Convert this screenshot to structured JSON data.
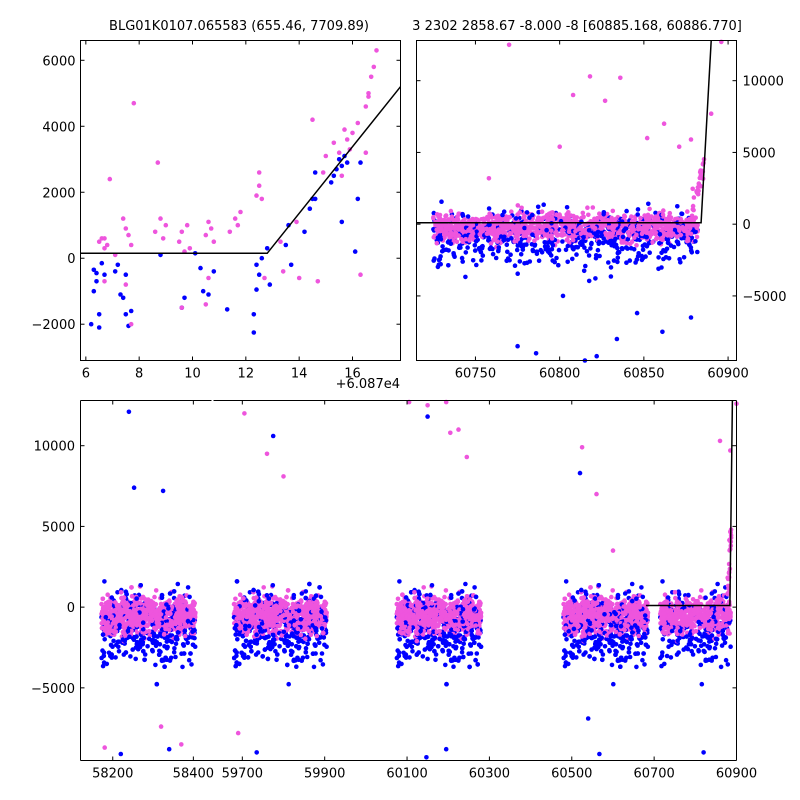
{
  "colors": {
    "blue": "#0000ff",
    "pink": "#ee55dd",
    "model": "#000000"
  },
  "chart_data": [
    {
      "id": "zoom",
      "type": "scatter",
      "title": "BLG01K0107.065583 (655.46, 7709.89)",
      "xlim": [
        5.8,
        17.8
      ],
      "ylim": [
        -3100,
        6600
      ],
      "xticks": [
        6,
        8,
        10,
        12,
        14,
        16
      ],
      "yticks": [
        -2000,
        0,
        2000,
        4000,
        6000
      ],
      "offset_label": "+6.087e4",
      "model": [
        [
          5.8,
          150
        ],
        [
          12.8,
          150
        ],
        [
          17.8,
          5200
        ]
      ],
      "series": [
        {
          "color": "blue",
          "points": [
            [
              6.3,
              -350
            ],
            [
              6.4,
              -450
            ],
            [
              6.4,
              -700
            ],
            [
              6.3,
              -1000
            ],
            [
              6.2,
              -2000
            ],
            [
              6.5,
              -1700
            ],
            [
              6.5,
              -2100
            ],
            [
              6.6,
              -150
            ],
            [
              6.7,
              -500
            ],
            [
              7.1,
              -400
            ],
            [
              7.2,
              -200
            ],
            [
              7.3,
              -1100
            ],
            [
              7.4,
              -1200
            ],
            [
              7.5,
              -500
            ],
            [
              7.5,
              -1700
            ],
            [
              7.6,
              -2050
            ],
            [
              7.7,
              -1600
            ],
            [
              8.8,
              100
            ],
            [
              9.6,
              -1500
            ],
            [
              9.7,
              -1200
            ],
            [
              10.1,
              150
            ],
            [
              10.3,
              -300
            ],
            [
              10.4,
              -1000
            ],
            [
              10.6,
              -1100
            ],
            [
              10.8,
              -400
            ],
            [
              11.3,
              -1550
            ],
            [
              12.3,
              -1700
            ],
            [
              12.3,
              -2250
            ],
            [
              12.4,
              -950
            ],
            [
              12.4,
              -200
            ],
            [
              12.5,
              -500
            ],
            [
              12.6,
              0
            ],
            [
              12.8,
              300
            ],
            [
              12.9,
              -800
            ],
            [
              13.5,
              400
            ],
            [
              13.6,
              1000
            ],
            [
              13.7,
              -200
            ],
            [
              14.2,
              800
            ],
            [
              14.4,
              1500
            ],
            [
              14.5,
              1800
            ],
            [
              14.6,
              2600
            ],
            [
              14.6,
              1800
            ],
            [
              15.2,
              2300
            ],
            [
              15.3,
              2500
            ],
            [
              15.4,
              2700
            ],
            [
              15.5,
              3000
            ],
            [
              15.6,
              2800
            ],
            [
              15.6,
              1100
            ],
            [
              15.7,
              3100
            ],
            [
              15.8,
              2900
            ],
            [
              16.1,
              200
            ],
            [
              16.2,
              1800
            ],
            [
              16.3,
              2900
            ]
          ]
        },
        {
          "color": "pink",
          "points": [
            [
              6.5,
              500
            ],
            [
              6.6,
              600
            ],
            [
              6.7,
              300
            ],
            [
              6.8,
              400
            ],
            [
              6.7,
              600
            ],
            [
              6.9,
              2400
            ],
            [
              6.7,
              -700
            ],
            [
              7.1,
              100
            ],
            [
              7.4,
              1200
            ],
            [
              7.5,
              900
            ],
            [
              7.6,
              700
            ],
            [
              7.7,
              400
            ],
            [
              7.8,
              4700
            ],
            [
              7.7,
              -2000
            ],
            [
              7.5,
              -800
            ],
            [
              8.6,
              800
            ],
            [
              8.7,
              2900
            ],
            [
              8.8,
              1200
            ],
            [
              8.9,
              600
            ],
            [
              9.0,
              1000
            ],
            [
              9.5,
              500
            ],
            [
              9.6,
              800
            ],
            [
              9.7,
              200
            ],
            [
              9.8,
              1000
            ],
            [
              9.9,
              300
            ],
            [
              9.6,
              -1500
            ],
            [
              10.5,
              700
            ],
            [
              10.6,
              1100
            ],
            [
              10.7,
              900
            ],
            [
              10.8,
              500
            ],
            [
              10.6,
              -600
            ],
            [
              10.5,
              -1400
            ],
            [
              11.4,
              800
            ],
            [
              11.6,
              1200
            ],
            [
              11.7,
              1000
            ],
            [
              11.8,
              1400
            ],
            [
              12.4,
              1900
            ],
            [
              12.5,
              2200
            ],
            [
              12.5,
              2600
            ],
            [
              12.6,
              1800
            ],
            [
              12.7,
              -600
            ],
            [
              13.3,
              500
            ],
            [
              13.4,
              -400
            ],
            [
              13.9,
              1100
            ],
            [
              14.0,
              -600
            ],
            [
              14.5,
              4200
            ],
            [
              14.7,
              -700
            ],
            [
              14.9,
              2600
            ],
            [
              15.0,
              3100
            ],
            [
              15.3,
              3500
            ],
            [
              15.5,
              3200
            ],
            [
              15.6,
              2500
            ],
            [
              15.7,
              3900
            ],
            [
              15.8,
              3600
            ],
            [
              15.9,
              3300
            ],
            [
              16.0,
              3800
            ],
            [
              16.2,
              4100
            ],
            [
              16.5,
              4600
            ],
            [
              16.6,
              5000
            ],
            [
              16.7,
              5500
            ],
            [
              16.8,
              5800
            ],
            [
              16.9,
              6300
            ],
            [
              16.5,
              3200
            ],
            [
              16.6,
              4900
            ],
            [
              16.3,
              -500
            ]
          ]
        }
      ]
    },
    {
      "id": "recent",
      "type": "scatter",
      "title": "3 2302 2858.67 -8.000 -8 [60885.168, 60886.770]",
      "xlim": [
        60715,
        60905
      ],
      "ylim": [
        -9500,
        12800
      ],
      "xticks": [
        60750,
        60800,
        60850,
        60900
      ],
      "yticks": [
        -5000,
        0,
        5000,
        10000
      ],
      "model": [
        [
          60715,
          100
        ],
        [
          60884,
          100
        ],
        [
          60890,
          12800
        ]
      ],
      "outliers_blue": [
        [
          60775,
          -8500
        ],
        [
          60786,
          -9000
        ],
        [
          60815,
          -9500
        ],
        [
          60822,
          -9200
        ],
        [
          60834,
          -8000
        ],
        [
          60861,
          -7500
        ],
        [
          60878,
          -6500
        ],
        [
          60802,
          -5000
        ],
        [
          60846,
          -6200
        ]
      ],
      "outliers_pink": [
        [
          60770,
          12500
        ],
        [
          60808,
          9000
        ],
        [
          60818,
          10300
        ],
        [
          60836,
          10200
        ],
        [
          60827,
          8600
        ],
        [
          60862,
          7000
        ],
        [
          60871,
          5400
        ],
        [
          60896,
          12700
        ],
        [
          60890,
          7700
        ],
        [
          60878,
          5900
        ],
        [
          60852,
          6000
        ],
        [
          60800,
          5400
        ],
        [
          60758,
          3200
        ]
      ]
    },
    {
      "id": "full",
      "type": "scatter",
      "xlim": [
        58120,
        60900
      ],
      "ylim": [
        -9500,
        12800
      ],
      "xticks": [
        58200,
        58400,
        59700,
        59900,
        60100,
        60300,
        60500,
        60700,
        60900
      ],
      "yticks": [
        -5000,
        0,
        5000,
        10000
      ],
      "seasons": [
        [
          58172,
          58405
        ],
        [
          59680,
          59905
        ],
        [
          60075,
          60280
        ],
        [
          60480,
          60685
        ],
        [
          60685,
          60887
        ]
      ],
      "segments": [
        {
          "xlim": [
            58120,
            58445
          ],
          "ticks": [
            58200,
            58400
          ]
        },
        {
          "xlim": [
            59630,
            60900
          ],
          "ticks": [
            59700,
            59900,
            60100,
            60300,
            60500,
            60700,
            60900
          ]
        }
      ],
      "model": [
        [
          60680,
          100
        ],
        [
          60884,
          100
        ],
        [
          60890,
          12800
        ]
      ],
      "clusters": [
        {
          "x0": 58172,
          "x1": 58405
        },
        {
          "x0": 59680,
          "x1": 59905
        },
        {
          "x0": 60075,
          "x1": 60280
        },
        {
          "x0": 60480,
          "x1": 60685
        },
        {
          "x0": 60715,
          "x1": 60886
        }
      ],
      "outliers_blue": [
        [
          58240,
          12100
        ],
        [
          58253,
          7400
        ],
        [
          58325,
          7200
        ],
        [
          58340,
          -8800
        ],
        [
          58220,
          -9100
        ],
        [
          59735,
          -9000
        ],
        [
          59775,
          10600
        ],
        [
          60147,
          -9300
        ],
        [
          60195,
          -8800
        ],
        [
          60540,
          -6900
        ],
        [
          60567,
          -9100
        ],
        [
          60820,
          -9000
        ],
        [
          60150,
          11800
        ],
        [
          60520,
          8300
        ]
      ],
      "outliers_pink": [
        [
          59760,
          9500
        ],
        [
          59705,
          12000
        ],
        [
          59800,
          8100
        ],
        [
          60105,
          12700
        ],
        [
          60150,
          12500
        ],
        [
          60195,
          12700
        ],
        [
          60205,
          10800
        ],
        [
          60225,
          11000
        ],
        [
          60245,
          9300
        ],
        [
          60525,
          9900
        ],
        [
          60560,
          7000
        ],
        [
          60600,
          3500
        ],
        [
          60900,
          12600
        ],
        [
          60860,
          10300
        ],
        [
          60885,
          9700
        ],
        [
          58180,
          -8700
        ],
        [
          58320,
          -7400
        ],
        [
          58370,
          -8500
        ],
        [
          59690,
          -7800
        ]
      ]
    }
  ]
}
